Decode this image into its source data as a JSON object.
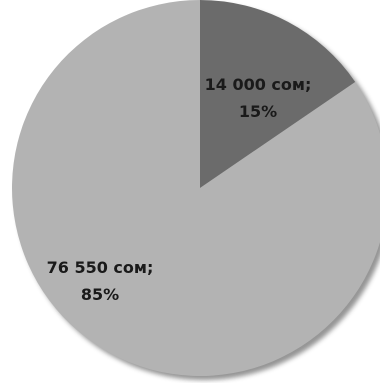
{
  "chart_data": {
    "type": "pie",
    "title": "",
    "slices": [
      {
        "value": 14000,
        "percent": 15,
        "value_label": "14 000 сом;",
        "percent_label": "15%",
        "color": "#6b6b6b"
      },
      {
        "value": 76550,
        "percent": 85,
        "value_label": "76 550 сом;",
        "percent_label": "85%",
        "color": "#b3b3b3"
      }
    ],
    "shadow_color": "#3c3c3c",
    "legend": "none"
  }
}
